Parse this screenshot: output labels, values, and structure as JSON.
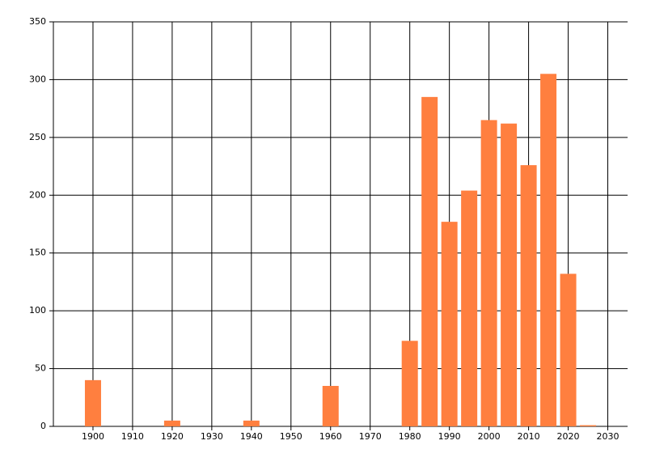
{
  "chart_data": {
    "type": "bar",
    "x": [
      1900,
      1920,
      1940,
      1960,
      1980,
      1985,
      1990,
      1995,
      2000,
      2005,
      2010,
      2015,
      2020,
      2025
    ],
    "values": [
      40,
      5,
      5,
      35,
      74,
      285,
      177,
      204,
      265,
      262,
      226,
      305,
      132,
      1
    ],
    "color": "#ff7f3f",
    "xlim": [
      1890,
      2035
    ],
    "xticks": [
      1900,
      1910,
      1920,
      1930,
      1940,
      1950,
      1960,
      1970,
      1980,
      1990,
      2000,
      2010,
      2020,
      2030
    ],
    "ylim": [
      0,
      350
    ],
    "yticks": [
      0,
      50,
      100,
      150,
      200,
      250,
      300,
      350
    ],
    "grid": true
  }
}
